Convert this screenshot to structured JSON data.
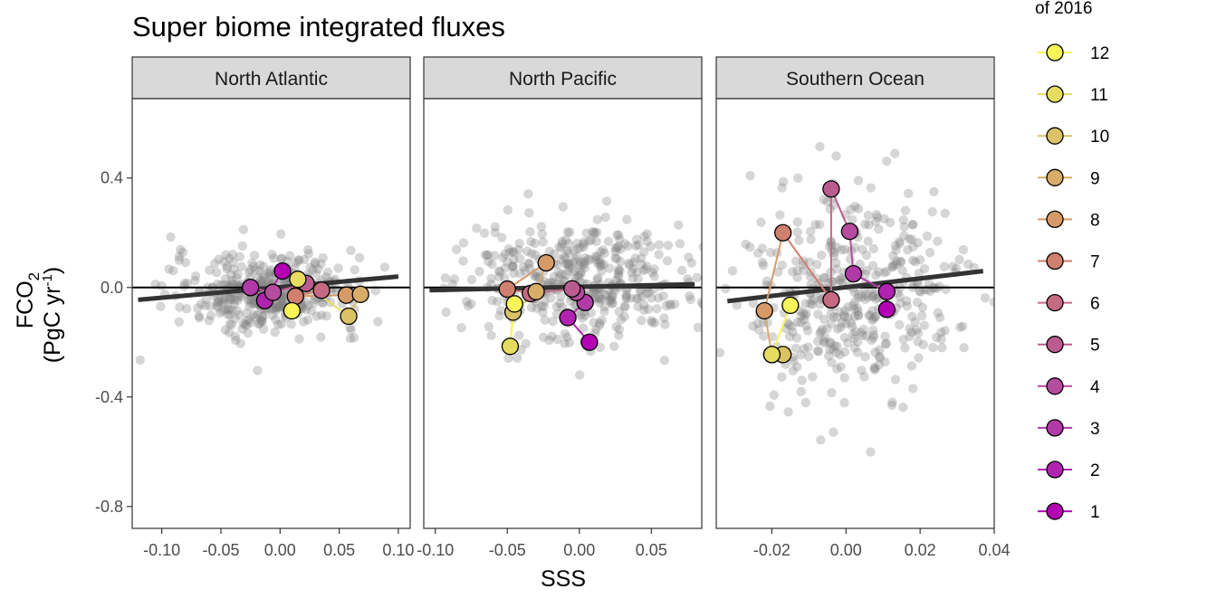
{
  "title": "Super biome integrated fluxes",
  "legend_title": "of 2016",
  "chart_data": {
    "type": "scatter",
    "xlabel": "SSS",
    "ylabel": {
      "main": "FCO",
      "sub": "2",
      "unit_pre": "(PgC yr",
      "unit_sup": "-1",
      "unit_post": ")"
    },
    "ylim": [
      -0.88,
      0.69
    ],
    "yticks": [
      0.4,
      0.0,
      -0.4,
      -0.8
    ],
    "yticklabels": [
      "0.4",
      "0.0",
      "-0.4",
      "-0.8"
    ],
    "grid": false,
    "legend_placement": "right",
    "month_colors": {
      "1": "#b200b2",
      "2": "#b023b1",
      "3": "#b13aa7",
      "4": "#b54c9f",
      "5": "#bb5c91",
      "6": "#c56a83",
      "7": "#d0806e",
      "8": "#d69a68",
      "9": "#d8ad67",
      "10": "#dcc267",
      "11": "#e6dc60",
      "12": "#f7f55a"
    },
    "legend_months": [
      12,
      11,
      10,
      9,
      8,
      7,
      6,
      5,
      4,
      3,
      2,
      1
    ],
    "panels": [
      {
        "name": "North Atlantic",
        "xlim": [
          -0.125,
          0.11
        ],
        "xticks": [
          -0.1,
          -0.05,
          0.0,
          0.05,
          0.1
        ],
        "xticklabels": [
          "-0.10",
          "-0.05",
          "0.00",
          "0.05",
          "0.10"
        ],
        "trend": [
          [
            -0.12,
            -0.045
          ],
          [
            0.1,
            0.04
          ]
        ],
        "background_cloud": {
          "x_center": -0.01,
          "x_sd": 0.04,
          "y_center": -0.02,
          "y_sd": 0.07
        },
        "points_2016": [
          {
            "month": 1,
            "x": 0.002,
            "y": 0.06
          },
          {
            "month": 2,
            "x": -0.013,
            "y": -0.048
          },
          {
            "month": 3,
            "x": -0.025,
            "y": 0.0
          },
          {
            "month": 4,
            "x": -0.006,
            "y": -0.018
          },
          {
            "month": 5,
            "x": 0.022,
            "y": 0.015
          },
          {
            "month": 6,
            "x": 0.035,
            "y": -0.01
          },
          {
            "month": 7,
            "x": 0.013,
            "y": -0.032
          },
          {
            "month": 8,
            "x": 0.056,
            "y": -0.028
          },
          {
            "month": 9,
            "x": 0.068,
            "y": -0.025
          },
          {
            "month": 10,
            "x": 0.058,
            "y": -0.105
          },
          {
            "month": 11,
            "x": 0.015,
            "y": 0.03
          },
          {
            "month": 12,
            "x": 0.01,
            "y": -0.085
          }
        ]
      },
      {
        "name": "North Pacific",
        "xlim": [
          -0.108,
          0.085
        ],
        "xticks": [
          -0.1,
          -0.05,
          0.0,
          0.05
        ],
        "xticklabels": [
          "-0.10",
          "-0.05",
          "0.00",
          "0.05"
        ],
        "trend": [
          [
            -0.104,
            -0.01
          ],
          [
            0.08,
            0.012
          ]
        ],
        "background_cloud": {
          "x_center": 0.0,
          "x_sd": 0.038,
          "y_center": 0.03,
          "y_sd": 0.11
        },
        "points_2016": [
          {
            "month": 1,
            "x": 0.007,
            "y": -0.2
          },
          {
            "month": 2,
            "x": -0.008,
            "y": -0.11
          },
          {
            "month": 3,
            "x": 0.004,
            "y": -0.055
          },
          {
            "month": 4,
            "x": -0.002,
            "y": -0.018
          },
          {
            "month": 5,
            "x": -0.005,
            "y": -0.005
          },
          {
            "month": 6,
            "x": -0.034,
            "y": -0.022
          },
          {
            "month": 7,
            "x": -0.05,
            "y": -0.006
          },
          {
            "month": 8,
            "x": -0.023,
            "y": 0.09
          },
          {
            "month": 9,
            "x": -0.03,
            "y": -0.015
          },
          {
            "month": 10,
            "x": -0.046,
            "y": -0.09
          },
          {
            "month": 11,
            "x": -0.048,
            "y": -0.215
          },
          {
            "month": 12,
            "x": -0.045,
            "y": -0.06
          }
        ]
      },
      {
        "name": "Southern Ocean",
        "xlim": [
          -0.035,
          0.04
        ],
        "xticks": [
          -0.02,
          0.0,
          0.02,
          0.04
        ],
        "xticklabels": [
          "-0.02",
          "0.00",
          "0.02",
          "0.04"
        ],
        "trend": [
          [
            -0.032,
            -0.05
          ],
          [
            0.037,
            0.06
          ]
        ],
        "background_cloud": {
          "x_center": 0.002,
          "x_sd": 0.014,
          "y_center": -0.03,
          "y_sd": 0.18
        },
        "points_2016": [
          {
            "month": 1,
            "x": 0.011,
            "y": -0.08
          },
          {
            "month": 2,
            "x": 0.011,
            "y": -0.015
          },
          {
            "month": 3,
            "x": 0.002,
            "y": 0.05
          },
          {
            "month": 4,
            "x": 0.001,
            "y": 0.205
          },
          {
            "month": 5,
            "x": -0.004,
            "y": 0.36
          },
          {
            "month": 6,
            "x": -0.004,
            "y": -0.045
          },
          {
            "month": 7,
            "x": -0.017,
            "y": 0.2
          },
          {
            "month": 8,
            "x": -0.022,
            "y": -0.085
          },
          {
            "month": 9,
            "x": -0.02,
            "y": -0.245
          },
          {
            "month": 10,
            "x": -0.017,
            "y": -0.245
          },
          {
            "month": 11,
            "x": -0.02,
            "y": -0.245
          },
          {
            "month": 12,
            "x": -0.015,
            "y": -0.065
          }
        ]
      }
    ]
  }
}
